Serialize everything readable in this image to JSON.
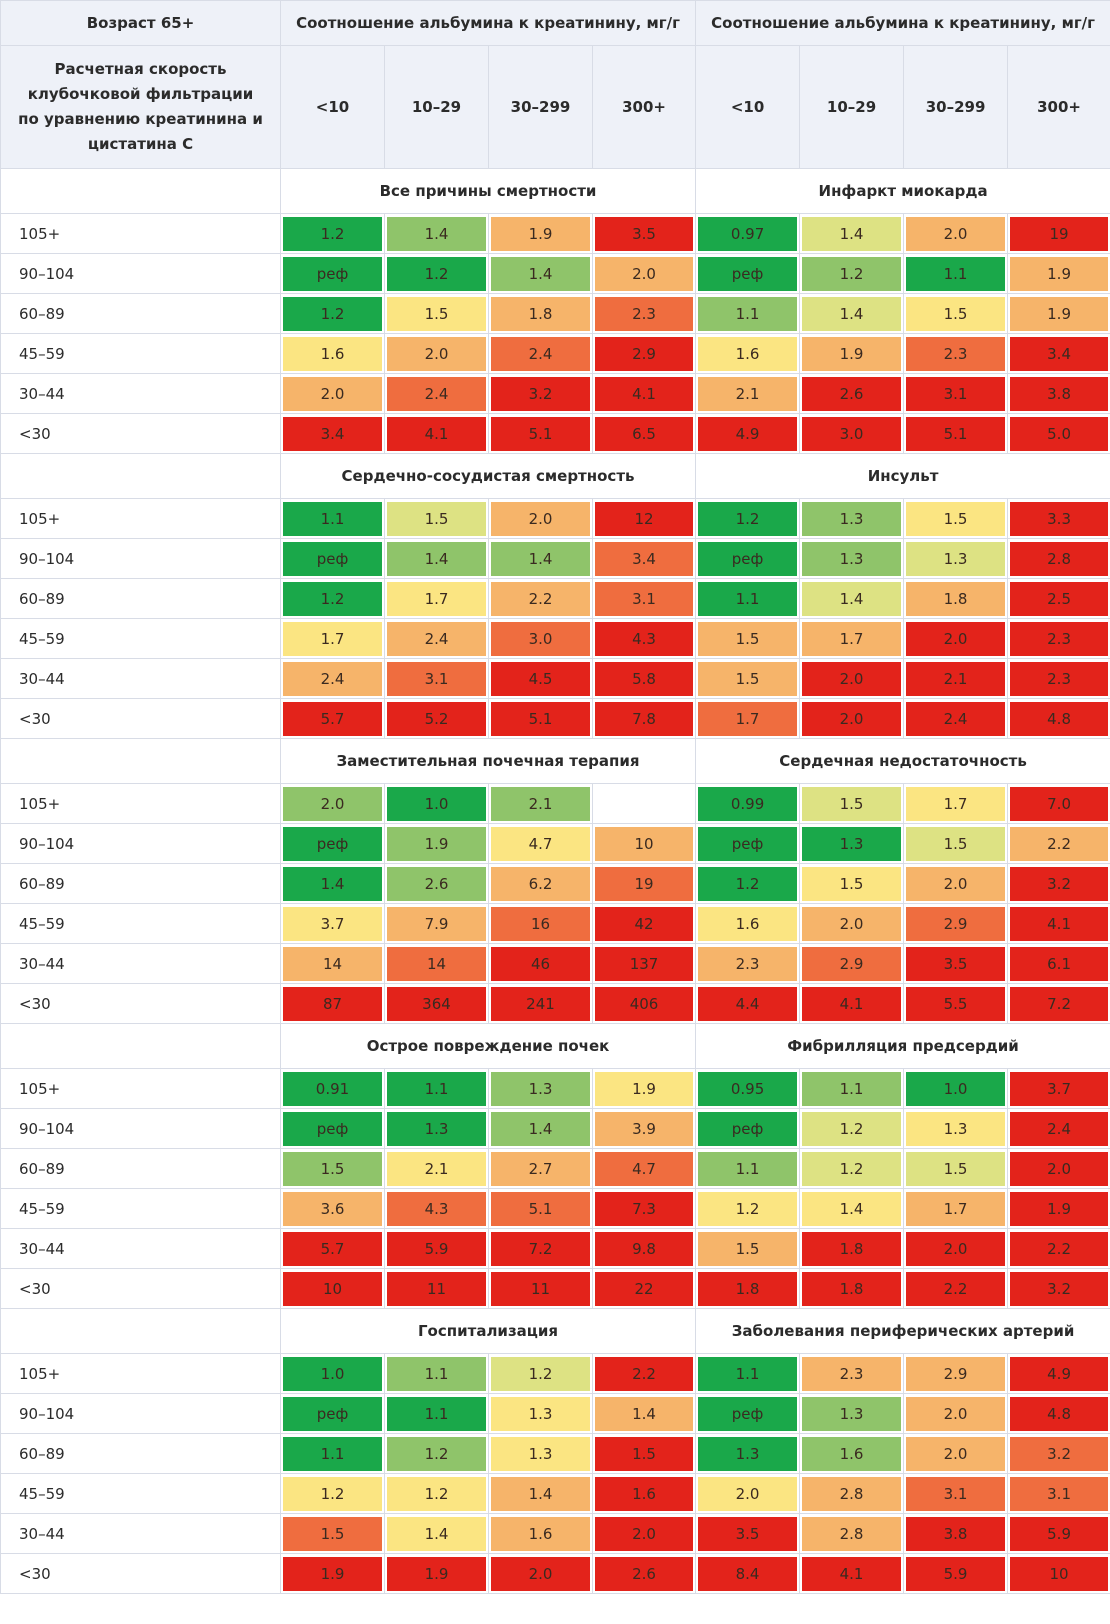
{
  "header": {
    "title": "Возраст 65+",
    "group_label": "Соотношение альбумина к креатинину, мг/г",
    "row_label": "Расчетная скорость клубочковой фильтрации по уравнению креатинина и цистатина С",
    "categories": [
      "<10",
      "10–29",
      "30–299",
      "300+"
    ]
  },
  "row_labels": [
    "105+",
    "90–104",
    "60–89",
    "45–59",
    "30–44",
    "<30"
  ],
  "colors": {
    "dark_green": "#1aa84a",
    "light_green": "#8fc46a",
    "lime": "#dde283",
    "yellow": "#fbe582",
    "orange": "#f6b46a",
    "dark_orange": "#ef6d3f",
    "red": "#e3231b",
    "title_blue": "#1f5fbf",
    "header_bg": "#eef1f8"
  },
  "sections": [
    {
      "left_title": "Все причины смертности",
      "right_title": "Инфаркт миокарда",
      "left": [
        [
          "1.2",
          "1.4",
          "1.9",
          "3.5"
        ],
        [
          "реф",
          "1.2",
          "1.4",
          "2.0"
        ],
        [
          "1.2",
          "1.5",
          "1.8",
          "2.3"
        ],
        [
          "1.6",
          "2.0",
          "2.4",
          "2.9"
        ],
        [
          "2.0",
          "2.4",
          "3.2",
          "4.1"
        ],
        [
          "3.4",
          "4.1",
          "5.1",
          "6.5"
        ]
      ],
      "left_colors": [
        [
          "dg",
          "lg",
          "or",
          "rd"
        ],
        [
          "dg",
          "dg",
          "lg",
          "or"
        ],
        [
          "dg",
          "yl",
          "or",
          "do"
        ],
        [
          "yl",
          "or",
          "do",
          "rd"
        ],
        [
          "or",
          "do",
          "rd",
          "rd"
        ],
        [
          "rd",
          "rd",
          "rd",
          "rd"
        ]
      ],
      "right": [
        [
          "0.97",
          "1.4",
          "2.0",
          "19"
        ],
        [
          "реф",
          "1.2",
          "1.1",
          "1.9"
        ],
        [
          "1.1",
          "1.4",
          "1.5",
          "1.9"
        ],
        [
          "1.6",
          "1.9",
          "2.3",
          "3.4"
        ],
        [
          "2.1",
          "2.6",
          "3.1",
          "3.8"
        ],
        [
          "4.9",
          "3.0",
          "5.1",
          "5.0"
        ]
      ],
      "right_colors": [
        [
          "dg",
          "li",
          "or",
          "rd"
        ],
        [
          "dg",
          "lg",
          "dg",
          "or"
        ],
        [
          "lg",
          "li",
          "yl",
          "or"
        ],
        [
          "yl",
          "or",
          "do",
          "rd"
        ],
        [
          "or",
          "rd",
          "rd",
          "rd"
        ],
        [
          "rd",
          "rd",
          "rd",
          "rd"
        ]
      ]
    },
    {
      "left_title": "Сердечно-сосудистая смертность",
      "right_title": "Инсульт",
      "left": [
        [
          "1.1",
          "1.5",
          "2.0",
          "12"
        ],
        [
          "реф",
          "1.4",
          "1.4",
          "3.4"
        ],
        [
          "1.2",
          "1.7",
          "2.2",
          "3.1"
        ],
        [
          "1.7",
          "2.4",
          "3.0",
          "4.3"
        ],
        [
          "2.4",
          "3.1",
          "4.5",
          "5.8"
        ],
        [
          "5.7",
          "5.2",
          "5.1",
          "7.8"
        ]
      ],
      "left_colors": [
        [
          "dg",
          "li",
          "or",
          "rd"
        ],
        [
          "dg",
          "lg",
          "lg",
          "do"
        ],
        [
          "dg",
          "yl",
          "or",
          "do"
        ],
        [
          "yl",
          "or",
          "do",
          "rd"
        ],
        [
          "or",
          "do",
          "rd",
          "rd"
        ],
        [
          "rd",
          "rd",
          "rd",
          "rd"
        ]
      ],
      "right": [
        [
          "1.2",
          "1.3",
          "1.5",
          "3.3"
        ],
        [
          "реф",
          "1.3",
          "1.3",
          "2.8"
        ],
        [
          "1.1",
          "1.4",
          "1.8",
          "2.5"
        ],
        [
          "1.5",
          "1.7",
          "2.0",
          "2.3"
        ],
        [
          "1.5",
          "2.0",
          "2.1",
          "2.3"
        ],
        [
          "1.7",
          "2.0",
          "2.4",
          "4.8"
        ]
      ],
      "right_colors": [
        [
          "dg",
          "lg",
          "yl",
          "rd"
        ],
        [
          "dg",
          "lg",
          "li",
          "rd"
        ],
        [
          "dg",
          "li",
          "or",
          "rd"
        ],
        [
          "or",
          "or",
          "rd",
          "rd"
        ],
        [
          "or",
          "rd",
          "rd",
          "rd"
        ],
        [
          "do",
          "rd",
          "rd",
          "rd"
        ]
      ]
    },
    {
      "left_title": "Заместительная почечная терапия",
      "right_title": "Сердечная недостаточность",
      "left": [
        [
          "2.0",
          "1.0",
          "2.1",
          ""
        ],
        [
          "реф",
          "1.9",
          "4.7",
          "10"
        ],
        [
          "1.4",
          "2.6",
          "6.2",
          "19"
        ],
        [
          "3.7",
          "7.9",
          "16",
          "42"
        ],
        [
          "14",
          "14",
          "46",
          "137"
        ],
        [
          "87",
          "364",
          "241",
          "406"
        ]
      ],
      "left_colors": [
        [
          "lg",
          "dg",
          "lg",
          "wh"
        ],
        [
          "dg",
          "lg",
          "yl",
          "or"
        ],
        [
          "dg",
          "lg",
          "or",
          "do"
        ],
        [
          "yl",
          "or",
          "do",
          "rd"
        ],
        [
          "or",
          "do",
          "rd",
          "rd"
        ],
        [
          "rd",
          "rd",
          "rd",
          "rd"
        ]
      ],
      "right": [
        [
          "0.99",
          "1.5",
          "1.7",
          "7.0"
        ],
        [
          "реф",
          "1.3",
          "1.5",
          "2.2"
        ],
        [
          "1.2",
          "1.5",
          "2.0",
          "3.2"
        ],
        [
          "1.6",
          "2.0",
          "2.9",
          "4.1"
        ],
        [
          "2.3",
          "2.9",
          "3.5",
          "6.1"
        ],
        [
          "4.4",
          "4.1",
          "5.5",
          "7.2"
        ]
      ],
      "right_colors": [
        [
          "dg",
          "li",
          "yl",
          "rd"
        ],
        [
          "dg",
          "dg",
          "li",
          "or"
        ],
        [
          "dg",
          "yl",
          "or",
          "rd"
        ],
        [
          "yl",
          "or",
          "do",
          "rd"
        ],
        [
          "or",
          "do",
          "rd",
          "rd"
        ],
        [
          "rd",
          "rd",
          "rd",
          "rd"
        ]
      ]
    },
    {
      "left_title": "Острое повреждение почек",
      "right_title": "Фибрилляция предсердий",
      "left": [
        [
          "0.91",
          "1.1",
          "1.3",
          "1.9"
        ],
        [
          "реф",
          "1.3",
          "1.4",
          "3.9"
        ],
        [
          "1.5",
          "2.1",
          "2.7",
          "4.7"
        ],
        [
          "3.6",
          "4.3",
          "5.1",
          "7.3"
        ],
        [
          "5.7",
          "5.9",
          "7.2",
          "9.8"
        ],
        [
          "10",
          "11",
          "11",
          "22"
        ]
      ],
      "left_colors": [
        [
          "dg",
          "dg",
          "lg",
          "yl"
        ],
        [
          "dg",
          "dg",
          "lg",
          "or"
        ],
        [
          "lg",
          "yl",
          "or",
          "do"
        ],
        [
          "or",
          "do",
          "do",
          "rd"
        ],
        [
          "rd",
          "rd",
          "rd",
          "rd"
        ],
        [
          "rd",
          "rd",
          "rd",
          "rd"
        ]
      ],
      "right": [
        [
          "0.95",
          "1.1",
          "1.0",
          "3.7"
        ],
        [
          "реф",
          "1.2",
          "1.3",
          "2.4"
        ],
        [
          "1.1",
          "1.2",
          "1.5",
          "2.0"
        ],
        [
          "1.2",
          "1.4",
          "1.7",
          "1.9"
        ],
        [
          "1.5",
          "1.8",
          "2.0",
          "2.2"
        ],
        [
          "1.8",
          "1.8",
          "2.2",
          "3.2"
        ]
      ],
      "right_colors": [
        [
          "dg",
          "lg",
          "dg",
          "rd"
        ],
        [
          "dg",
          "li",
          "yl",
          "rd"
        ],
        [
          "lg",
          "li",
          "li",
          "rd"
        ],
        [
          "yl",
          "yl",
          "or",
          "rd"
        ],
        [
          "or",
          "rd",
          "rd",
          "rd"
        ],
        [
          "rd",
          "rd",
          "rd",
          "rd"
        ]
      ]
    },
    {
      "left_title": "Госпитализация",
      "right_title": "Заболевания периферических артерий",
      "left": [
        [
          "1.0",
          "1.1",
          "1.2",
          "2.2"
        ],
        [
          "реф",
          "1.1",
          "1.3",
          "1.4"
        ],
        [
          "1.1",
          "1.2",
          "1.3",
          "1.5"
        ],
        [
          "1.2",
          "1.2",
          "1.4",
          "1.6"
        ],
        [
          "1.5",
          "1.4",
          "1.6",
          "2.0"
        ],
        [
          "1.9",
          "1.9",
          "2.0",
          "2.6"
        ]
      ],
      "left_colors": [
        [
          "dg",
          "lg",
          "li",
          "rd"
        ],
        [
          "dg",
          "dg",
          "yl",
          "or"
        ],
        [
          "dg",
          "lg",
          "yl",
          "rd"
        ],
        [
          "yl",
          "yl",
          "or",
          "rd"
        ],
        [
          "do",
          "yl",
          "or",
          "rd"
        ],
        [
          "rd",
          "rd",
          "rd",
          "rd"
        ]
      ],
      "right": [
        [
          "1.1",
          "2.3",
          "2.9",
          "4.9"
        ],
        [
          "реф",
          "1.3",
          "2.0",
          "4.8"
        ],
        [
          "1.3",
          "1.6",
          "2.0",
          "3.2"
        ],
        [
          "2.0",
          "2.8",
          "3.1",
          "3.1"
        ],
        [
          "3.5",
          "2.8",
          "3.8",
          "5.9"
        ],
        [
          "8.4",
          "4.1",
          "5.9",
          "10"
        ]
      ],
      "right_colors": [
        [
          "dg",
          "or",
          "or",
          "rd"
        ],
        [
          "dg",
          "lg",
          "or",
          "rd"
        ],
        [
          "dg",
          "lg",
          "or",
          "do"
        ],
        [
          "yl",
          "or",
          "do",
          "do"
        ],
        [
          "rd",
          "or",
          "rd",
          "rd"
        ],
        [
          "rd",
          "rd",
          "rd",
          "rd"
        ]
      ]
    }
  ]
}
